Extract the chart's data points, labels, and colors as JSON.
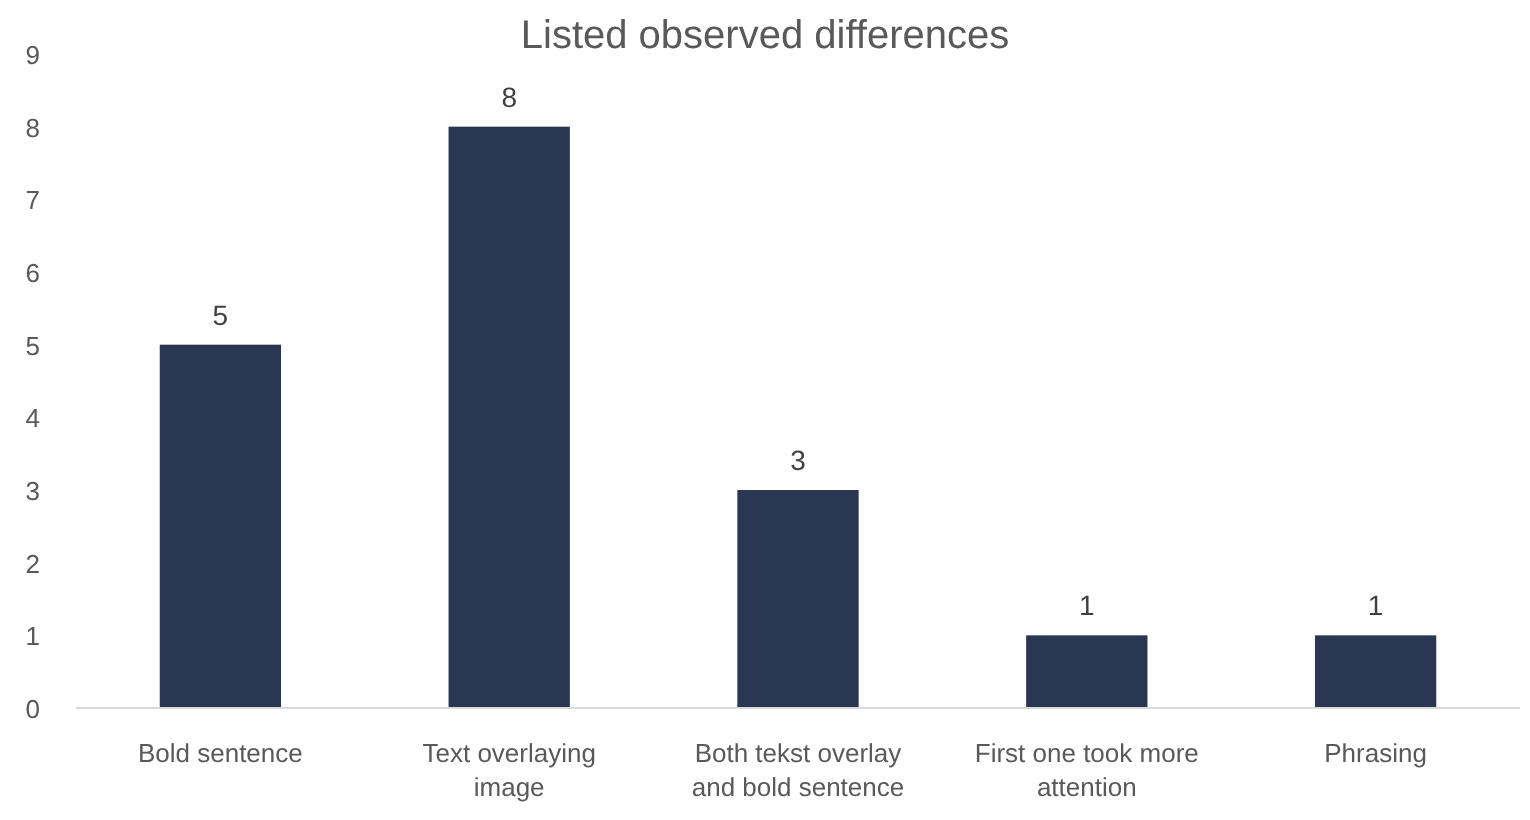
{
  "chart_data": {
    "type": "bar",
    "title": "Listed observed differences",
    "categories": [
      "Bold sentence",
      "Text overlaying image",
      "Both tekst overlay and bold sentence",
      "First one took more attention",
      "Phrasing"
    ],
    "values": [
      5,
      8,
      3,
      1,
      1
    ],
    "color": "#2a3753",
    "data_labels": true,
    "ylim": [
      0,
      9
    ],
    "yticks": [
      0,
      1,
      2,
      3,
      4,
      5,
      6,
      7,
      8,
      9
    ],
    "grid": false
  }
}
